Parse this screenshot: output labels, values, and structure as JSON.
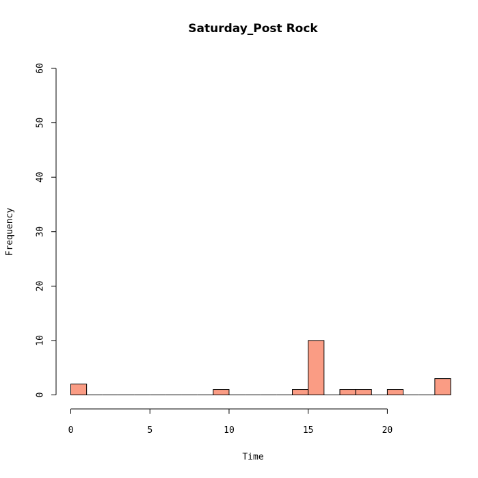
{
  "chart_data": {
    "type": "bar",
    "title": "Saturday_Post Rock",
    "xlabel": "Time",
    "ylabel": "Frequency",
    "xlim": [
      0,
      24
    ],
    "ylim": [
      0,
      60
    ],
    "x_ticks": [
      0,
      5,
      10,
      15,
      20
    ],
    "y_ticks": [
      0,
      10,
      20,
      30,
      40,
      50,
      60
    ],
    "bin_edges": [
      0,
      1,
      2,
      3,
      4,
      5,
      6,
      7,
      8,
      9,
      10,
      11,
      12,
      13,
      14,
      15,
      16,
      17,
      18,
      19,
      20,
      21,
      22,
      23,
      24
    ],
    "values": [
      2,
      0,
      0,
      0,
      0,
      0,
      0,
      0,
      0,
      1,
      0,
      0,
      0,
      0,
      1,
      10,
      0,
      1,
      1,
      0,
      1,
      0,
      0,
      3
    ],
    "bar_color": "#fa9c84",
    "grid": false
  }
}
